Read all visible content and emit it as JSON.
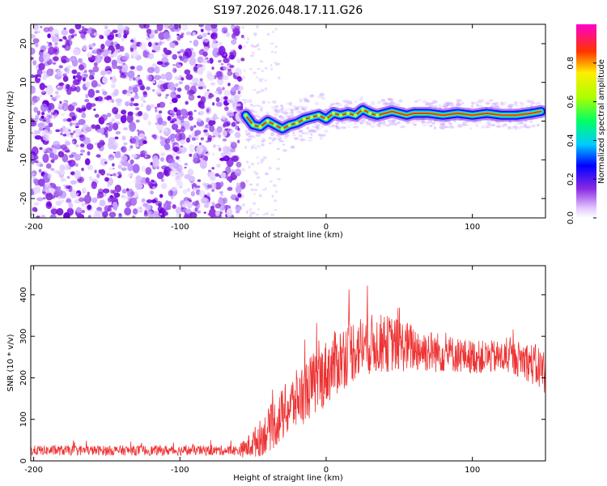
{
  "title": "S197.2026.048.17.11.G26",
  "chart_data": [
    {
      "type": "heatmap",
      "xlabel": "Height of straight line (km)",
      "ylabel": "Frequency (Hz)",
      "xlim": [
        -202,
        150
      ],
      "ylim": [
        -25,
        25
      ],
      "xticks": [
        -200,
        -100,
        0,
        100
      ],
      "yticks": [
        -20,
        -10,
        0,
        10,
        20
      ],
      "noise_region_x": [
        -202,
        -57
      ],
      "ridge": {
        "x": [
          -55,
          -50,
          -45,
          -40,
          -35,
          -30,
          -25,
          -20,
          -15,
          -10,
          -5,
          0,
          5,
          10,
          15,
          20,
          25,
          30,
          35,
          40,
          45,
          50,
          55,
          60,
          70,
          80,
          90,
          100,
          110,
          120,
          130,
          140,
          147
        ],
        "freq": [
          1.5,
          -1,
          -1.5,
          0,
          -1,
          -2,
          -1,
          -0.5,
          0.5,
          1,
          1.5,
          0.5,
          2,
          1.5,
          2,
          1.5,
          3,
          2,
          1.5,
          2,
          2.5,
          2,
          1.5,
          2,
          2,
          1.5,
          2,
          1.5,
          2,
          1.5,
          1.5,
          2,
          2.5
        ]
      },
      "colorbar": {
        "label": "Normalized spectral amplitude",
        "ticks": [
          0.0,
          0.2,
          0.4,
          0.6,
          0.8
        ],
        "range": [
          0.0,
          1.0
        ]
      },
      "grid": false
    },
    {
      "type": "line",
      "xlabel": "Height of straight line (km)",
      "ylabel": "SNR (10 * v/v)",
      "xlim": [
        -202,
        150
      ],
      "ylim": [
        0,
        470
      ],
      "xticks": [
        -200,
        -100,
        0,
        100
      ],
      "yticks": [
        0,
        100,
        200,
        300,
        400
      ],
      "series": [
        {
          "color": "#ee3333",
          "x": [
            -202,
            -180,
            -160,
            -140,
            -120,
            -100,
            -80,
            -60,
            -55,
            -45,
            -35,
            -25,
            -15,
            -5,
            5,
            15,
            25,
            35,
            45,
            55,
            65,
            75,
            85,
            95,
            105,
            115,
            125,
            135,
            145,
            150
          ],
          "envelope": [
            25,
            25,
            25,
            25,
            25,
            25,
            25,
            25,
            30,
            55,
            90,
            130,
            165,
            195,
            230,
            262,
            278,
            282,
            282,
            275,
            268,
            262,
            258,
            252,
            250,
            250,
            248,
            245,
            225,
            215
          ],
          "spread": [
            12,
            12,
            12,
            12,
            12,
            12,
            12,
            12,
            25,
            45,
            60,
            70,
            75,
            80,
            80,
            80,
            75,
            72,
            68,
            62,
            55,
            50,
            45,
            42,
            40,
            40,
            40,
            45,
            55,
            55
          ]
        }
      ],
      "grid": false
    }
  ]
}
